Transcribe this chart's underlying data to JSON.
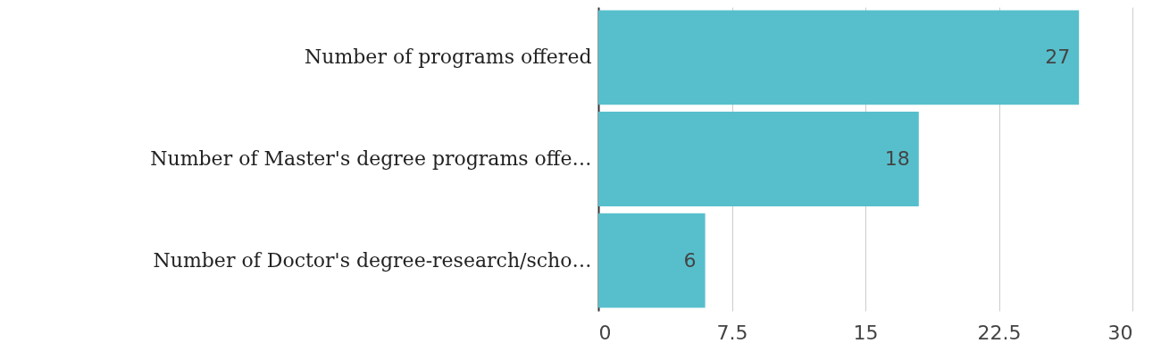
{
  "chart_data": {
    "type": "bar",
    "orientation": "horizontal",
    "categories": [
      "Number of programs offered",
      "Number of Master's degree programs offe…",
      "Number of Doctor's degree-research/scho…"
    ],
    "values": [
      27,
      18,
      6
    ],
    "color": "#57bfcc",
    "xlim": [
      0,
      30
    ],
    "xticks": [
      0,
      7.5,
      15,
      22.5,
      30
    ],
    "grid": "x",
    "data_labels": true
  }
}
